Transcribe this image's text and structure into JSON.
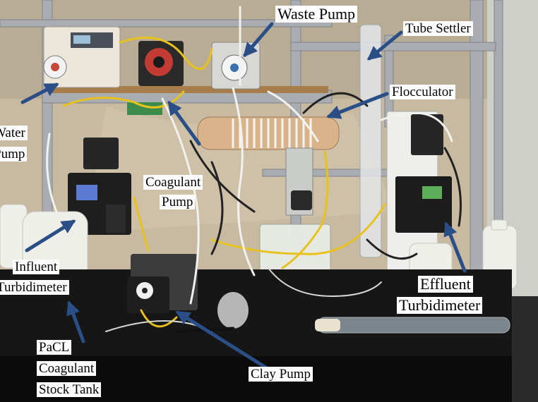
{
  "labels": {
    "waste_pump": "Waste Pump",
    "tube_settler": "Tube Settler",
    "flocculator": "Flocculator",
    "water_pump_line1": "Water",
    "water_pump_line2": "Pump",
    "coagulant_pump_line1": "Coagulant",
    "coagulant_pump_line2": "Pump",
    "influent_line1": "Influent",
    "influent_line2": "Turbidimeter",
    "effluent_line1": "Effluent",
    "effluent_line2": "Turbidimeter",
    "clay_pump": "Clay Pump",
    "stock_line1": "PaCL",
    "stock_line2": "Coagulant",
    "stock_line3": "Stock Tank"
  },
  "colors": {
    "arrow": "#2a4f86",
    "bench": "#161616",
    "frame": "#a9adb1",
    "curtain": "#cdbfa3",
    "tubing_yellow": "#e7c21c"
  }
}
